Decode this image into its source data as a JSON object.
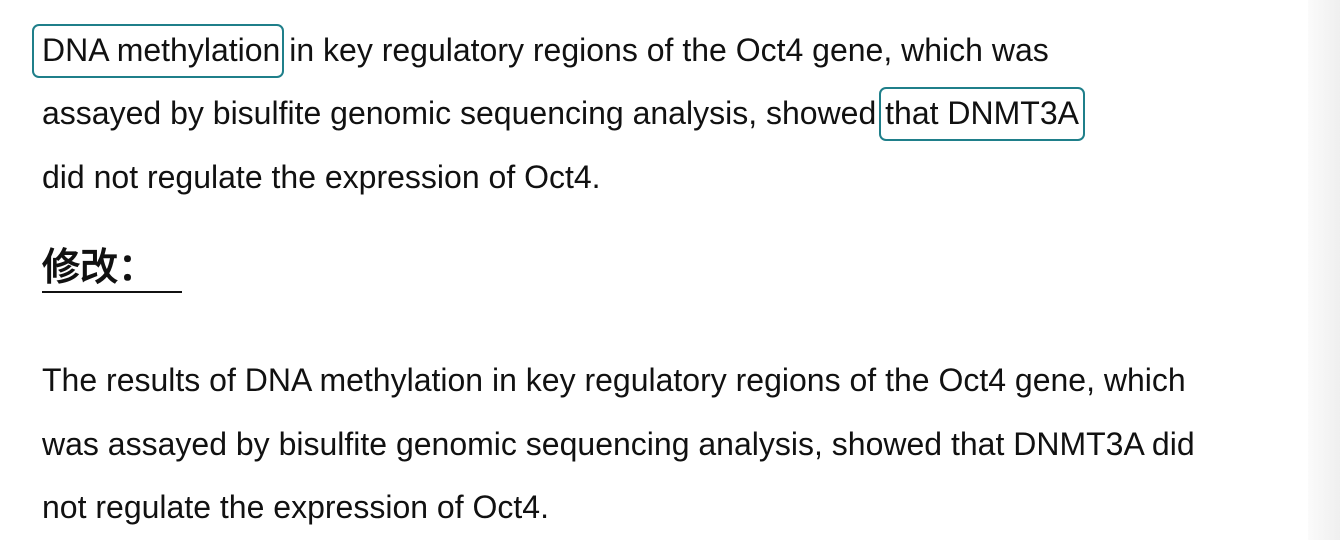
{
  "original": {
    "line1_highlight": "DNA methylation",
    "line1_rest": " in key regulatory regions of the Oct4 gene, which was",
    "line2_start": "assayed by bisulfite genomic sequencing analysis, showed ",
    "line2_highlight": "that DNMT3A",
    "line3": "did not regulate the expression of Oct4."
  },
  "heading": "修改：",
  "revised": {
    "line1": "The results of DNA methylation in key regulatory regions of the Oct4 gene, which",
    "line2": "was assayed by bisulfite genomic sequencing analysis, showed that DNMT3A did",
    "line3": "not regulate the expression of Oct4."
  },
  "colors": {
    "highlight_border": "#1f7f8a",
    "text": "#111111"
  }
}
